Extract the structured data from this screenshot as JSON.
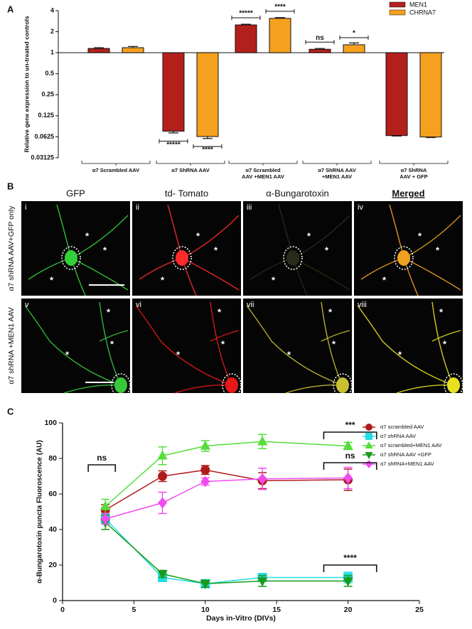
{
  "chart_data": [
    {
      "type": "bar",
      "panel_label": "A",
      "y_label": "Relative gene expression to un-treated controls",
      "log_base": 2,
      "baseline": 1,
      "ylim": [
        0.03125,
        4
      ],
      "yticks": [
        0.03125,
        0.0625,
        0.125,
        0.25,
        0.5,
        1,
        2,
        4
      ],
      "legend": "top-right",
      "categories": [
        [
          "α7 Scrambled AAV"
        ],
        [
          "α7 ShRNA AAV"
        ],
        [
          "α7 Scrambled",
          "AAV +MEN1 AAV"
        ],
        [
          "α7 ShRNA AAV",
          "+MEN1 AAV"
        ],
        [
          "α7 ShRNA",
          "AAV + GFP"
        ]
      ],
      "series": [
        {
          "name": "MEN1",
          "color": "#b3201c",
          "values": [
            1.15,
            0.075,
            2.5,
            1.12,
            0.065
          ],
          "errors": [
            0.03,
            0.004,
            0.06,
            0.03,
            0.001
          ]
        },
        {
          "name": "CHRNA7",
          "color": "#f5a01e",
          "values": [
            1.18,
            0.063,
            3.1,
            1.3,
            0.062
          ],
          "errors": [
            0.05,
            0.004,
            0.08,
            0.08,
            0.001
          ]
        }
      ],
      "annotations": [
        "*****",
        "****",
        "ns",
        "*",
        "*****",
        "****"
      ]
    },
    {
      "type": "line",
      "panel_label": "C",
      "x_label": "Days in-Vitro (DIVs)",
      "y_label": "α-Bungarotoxin puncta Fluoroscence (AU)",
      "xlim": [
        0,
        25
      ],
      "xticks": [
        0,
        5,
        10,
        15,
        20,
        25
      ],
      "ylim": [
        0,
        100
      ],
      "yticks": [
        0,
        20,
        40,
        60,
        80,
        100
      ],
      "legend": "top-right",
      "x": [
        3,
        7,
        10,
        14,
        20
      ],
      "series": [
        {
          "name": "α7 scrambled AAV",
          "color": "#b01c1c",
          "marker": "circle",
          "values": [
            51,
            70,
            73.5,
            67.5,
            68
          ],
          "errors": [
            3,
            3,
            2.5,
            4.5,
            6
          ]
        },
        {
          "name": "α7 shRNA AAV",
          "color": "#22dde6",
          "marker": "square",
          "values": [
            46,
            13,
            9.5,
            13,
            13
          ],
          "errors": [
            3,
            2,
            2,
            2,
            3
          ]
        },
        {
          "name": "α7 scrambled+MEN1 AAV",
          "color": "#55dd3a",
          "marker": "triangle-up",
          "values": [
            53,
            81.5,
            87,
            89.5,
            87
          ],
          "errors": [
            4,
            5,
            3,
            4,
            2
          ]
        },
        {
          "name": "α7 shRNA AAV +GFP",
          "color": "#1a9a1a",
          "marker": "triangle-down",
          "values": [
            44,
            15,
            9.5,
            11,
            11
          ],
          "errors": [
            4,
            2,
            2,
            3,
            3
          ]
        },
        {
          "name": "α7 shRNA+MEN1 AAV",
          "color": "#f04cf0",
          "marker": "diamond",
          "values": [
            46,
            55,
            67,
            68.5,
            69
          ],
          "errors": [
            3,
            6,
            2,
            6,
            6
          ]
        }
      ],
      "annotations": [
        "ns",
        "***",
        "ns",
        "****"
      ]
    }
  ],
  "images": {
    "panel_label": "B",
    "columns": [
      "GFP",
      "td- Tomato",
      "α-Bungarotoxin",
      "Merged"
    ],
    "rows": [
      "α7  shRNA AAV+GFP only",
      "α7  shRNA +MEN1 AAV"
    ],
    "numerals": [
      "i",
      "ii",
      "iii",
      "iv",
      "v",
      "vi",
      "vii",
      "viii"
    ],
    "marker": "*"
  }
}
